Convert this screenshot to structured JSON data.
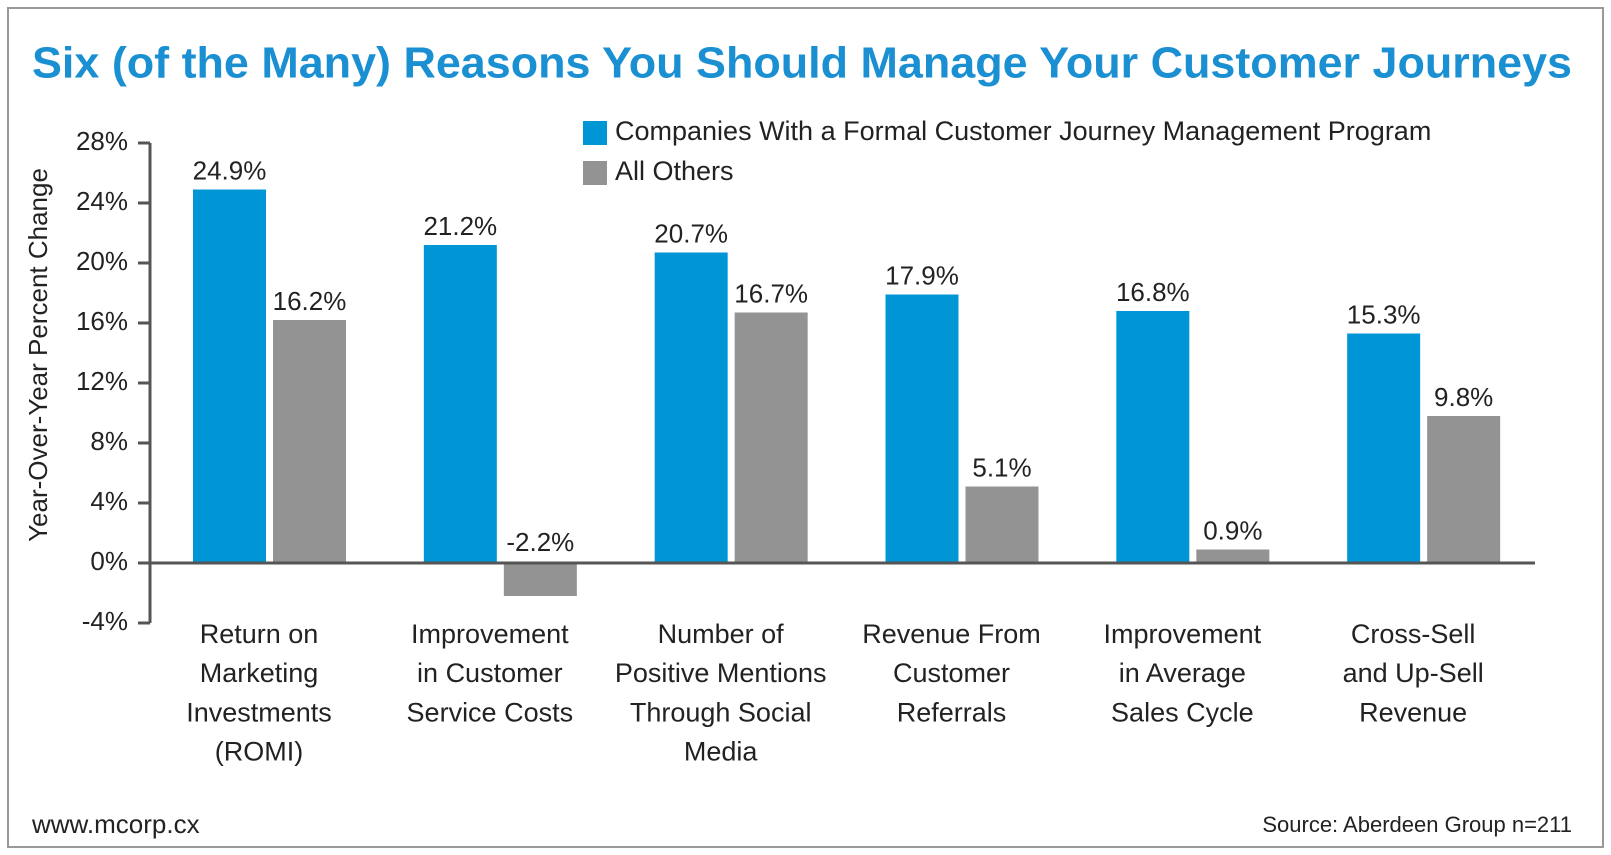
{
  "chart_data": {
    "type": "bar",
    "title": "Six (of the Many) Reasons You Should Manage Your Customer Journeys",
    "y_label": "Year-Over-Year Percent Change",
    "categories": [
      "Return on\nMarketing\nInvestments\n(ROMI)",
      "Improvement\nin Customer\nService Costs",
      "Number of\nPositive Mentions\nThrough Social\nMedia",
      "Revenue From\nCustomer\nReferrals",
      "Improvement\nin Average\nSales Cycle",
      "Cross-Sell\nand Up-Sell\nRevenue"
    ],
    "series": [
      {
        "name": "Companies With a Formal Customer Journey Management Program",
        "color": "#0096d6",
        "values": [
          24.9,
          21.2,
          20.7,
          17.9,
          16.8,
          15.3
        ],
        "value_labels": [
          "24.9%",
          "21.2%",
          "20.7%",
          "17.9%",
          "16.8%",
          "15.3%"
        ]
      },
      {
        "name": "All Others",
        "color": "#939393",
        "values": [
          16.2,
          -2.2,
          16.7,
          5.1,
          0.9,
          9.8
        ],
        "value_labels": [
          "16.2%",
          "-2.2%",
          "16.7%",
          "5.1%",
          "0.9%",
          "9.8%"
        ]
      }
    ],
    "ylim": [
      -4,
      28
    ],
    "yticks": [
      {
        "value": -4,
        "label": "-4%"
      },
      {
        "value": 0,
        "label": "0%"
      },
      {
        "value": 4,
        "label": "4%"
      },
      {
        "value": 8,
        "label": "8%"
      },
      {
        "value": 12,
        "label": "12%"
      },
      {
        "value": 16,
        "label": "16%"
      },
      {
        "value": 20,
        "label": "20%"
      },
      {
        "value": 24,
        "label": "24%"
      },
      {
        "value": 28,
        "label": "28%"
      }
    ],
    "grid": false,
    "legend": "top-right",
    "footer_left": "www.mcorp.cx",
    "source": "Source: Aberdeen Group n=211"
  }
}
